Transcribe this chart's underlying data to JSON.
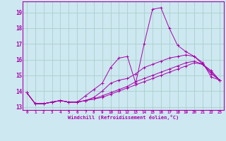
{
  "xlabel": "Windchill (Refroidissement éolien,°C)",
  "background_color": "#cde8f0",
  "grid_color": "#aacfcc",
  "line_color": "#aa00aa",
  "xlim": [
    -0.5,
    23.5
  ],
  "ylim": [
    12.8,
    19.7
  ],
  "xticks": [
    0,
    1,
    2,
    3,
    4,
    5,
    6,
    7,
    8,
    9,
    10,
    11,
    12,
    13,
    14,
    15,
    16,
    17,
    18,
    19,
    20,
    21,
    22,
    23
  ],
  "yticks": [
    13,
    14,
    15,
    16,
    17,
    18,
    19
  ],
  "series": [
    [
      13.9,
      13.2,
      13.2,
      13.3,
      13.4,
      13.3,
      13.3,
      13.7,
      14.1,
      14.5,
      15.5,
      16.1,
      16.2,
      14.5,
      17.0,
      19.2,
      19.3,
      18.0,
      16.9,
      16.5,
      16.2,
      15.8,
      14.9,
      14.7
    ],
    [
      13.9,
      13.2,
      13.2,
      13.3,
      13.4,
      13.3,
      13.3,
      13.4,
      13.6,
      14.0,
      14.5,
      14.7,
      14.8,
      15.1,
      15.5,
      15.7,
      15.9,
      16.1,
      16.2,
      16.3,
      16.2,
      15.7,
      15.3,
      14.7
    ],
    [
      13.9,
      13.2,
      13.2,
      13.3,
      13.4,
      13.3,
      13.3,
      13.4,
      13.5,
      13.7,
      13.9,
      14.1,
      14.3,
      14.6,
      14.8,
      15.0,
      15.2,
      15.4,
      15.6,
      15.8,
      15.9,
      15.7,
      15.2,
      14.7
    ],
    [
      13.9,
      13.2,
      13.2,
      13.3,
      13.4,
      13.3,
      13.3,
      13.4,
      13.5,
      13.6,
      13.8,
      14.0,
      14.2,
      14.4,
      14.6,
      14.8,
      15.0,
      15.2,
      15.4,
      15.6,
      15.8,
      15.7,
      15.1,
      14.7
    ]
  ]
}
